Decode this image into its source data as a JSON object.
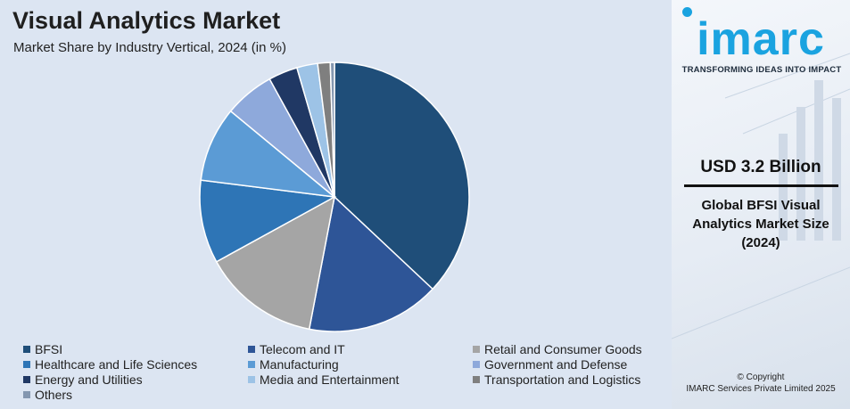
{
  "header": {
    "title": "Visual Analytics Market",
    "subtitle": "Market Share by Industry Vertical, 2024 (in %)"
  },
  "chart_data": {
    "type": "pie",
    "title": "Visual Analytics Market",
    "subtitle": "Market Share by Industry Vertical, 2024 (in %)",
    "categories": [
      "BFSI",
      "Telecom and IT",
      "Retail and Consumer Goods",
      "Healthcare and Life Sciences",
      "Manufacturing",
      "Government and Defense",
      "Energy and Utilities",
      "Media and Entertainment",
      "Transportation and Logistics",
      "Others"
    ],
    "values": [
      37,
      16,
      14,
      10,
      9,
      6,
      3.5,
      2.5,
      1.5,
      0.5
    ],
    "colors": [
      "#1f4e79",
      "#2e5597",
      "#a5a5a5",
      "#2e75b6",
      "#5b9bd5",
      "#8ea9db",
      "#203864",
      "#9dc3e6",
      "#7f7f7f",
      "#8497b0"
    ],
    "legend_position": "bottom"
  },
  "sidebar": {
    "logo_text": "imarc",
    "tagline": "TRANSFORMING IDEAS INTO IMPACT",
    "stat_value": "USD 3.2 Billion",
    "stat_description": "Global BFSI Visual Analytics Market Size (2024)",
    "copyright_line1": "© Copyright",
    "copyright_line2": "IMARC Services Private Limited 2025"
  }
}
